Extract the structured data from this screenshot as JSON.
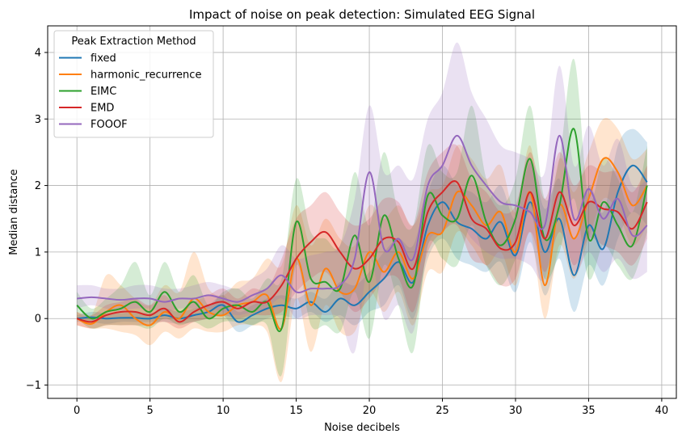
{
  "chart_data": {
    "type": "line",
    "title": "Impact of noise on peak detection: Simulated EEG Signal",
    "xlabel": "Noise decibels",
    "ylabel": "Median distance",
    "xlim": [
      -2,
      41
    ],
    "ylim": [
      -1.2,
      4.4
    ],
    "xticks": [
      0,
      5,
      10,
      15,
      20,
      25,
      30,
      35,
      40
    ],
    "yticks": [
      -1,
      0,
      1,
      2,
      3,
      4
    ],
    "grid": true,
    "legend": {
      "title": "Peak Extraction Method",
      "position": "upper-left"
    },
    "x": [
      0,
      1,
      2,
      3,
      4,
      5,
      6,
      7,
      8,
      9,
      10,
      11,
      12,
      13,
      14,
      15,
      16,
      17,
      18,
      19,
      20,
      21,
      22,
      23,
      24,
      25,
      26,
      27,
      28,
      29,
      30,
      31,
      32,
      33,
      34,
      35,
      36,
      37,
      38,
      39
    ],
    "series": [
      {
        "name": "fixed",
        "color": "#1f77b4",
        "values": [
          0,
          0.02,
          0.0,
          0.01,
          0.01,
          0.0,
          0.05,
          0.0,
          0.05,
          0.1,
          0.2,
          -0.05,
          0.05,
          0.15,
          0.2,
          0.15,
          0.25,
          0.1,
          0.3,
          0.2,
          0.4,
          0.6,
          0.85,
          0.55,
          1.4,
          1.75,
          1.45,
          1.35,
          1.2,
          1.45,
          0.95,
          1.75,
          1.0,
          1.5,
          0.65,
          1.4,
          1.05,
          1.9,
          2.3,
          2.05
        ],
        "lower": [
          -0.05,
          -0.05,
          -0.08,
          -0.05,
          -0.05,
          -0.05,
          -0.05,
          -0.08,
          -0.05,
          0.0,
          0.05,
          -0.2,
          -0.1,
          0.0,
          0.05,
          0.0,
          0.1,
          -0.05,
          0.05,
          -0.1,
          0.1,
          0.2,
          0.5,
          0.0,
          0.9,
          1.2,
          0.9,
          0.8,
          0.7,
          0.85,
          0.4,
          1.15,
          0.35,
          0.9,
          0.1,
          0.8,
          0.5,
          1.2,
          1.6,
          1.4
        ],
        "upper": [
          0.05,
          0.1,
          0.08,
          0.08,
          0.1,
          0.08,
          0.15,
          0.1,
          0.15,
          0.2,
          0.35,
          0.1,
          0.2,
          0.3,
          0.35,
          0.3,
          0.4,
          0.3,
          0.55,
          0.5,
          0.7,
          1.0,
          1.2,
          1.1,
          1.9,
          2.3,
          2.0,
          1.9,
          1.75,
          2.0,
          1.5,
          2.35,
          1.65,
          2.1,
          1.2,
          2.0,
          1.6,
          2.6,
          2.85,
          2.65
        ]
      },
      {
        "name": "harmonic_recurrence",
        "color": "#ff7f0e",
        "values": [
          0,
          -0.08,
          0.1,
          0.2,
          0.0,
          -0.1,
          0.1,
          0.0,
          0.3,
          0.1,
          0.05,
          0.2,
          0.25,
          0.35,
          -0.15,
          0.9,
          0.2,
          0.75,
          0.4,
          0.45,
          1.0,
          0.7,
          1.0,
          0.6,
          1.25,
          1.3,
          1.9,
          1.7,
          1.4,
          1.6,
          1.0,
          1.9,
          0.5,
          1.7,
          1.2,
          1.8,
          2.4,
          2.2,
          1.7,
          2.0
        ],
        "lower": [
          -0.1,
          -0.15,
          -0.15,
          -0.2,
          -0.25,
          -0.4,
          -0.2,
          -0.3,
          -0.15,
          -0.2,
          -0.2,
          -0.1,
          -0.1,
          -0.2,
          -0.95,
          0.3,
          -0.5,
          0.2,
          -0.2,
          -0.2,
          0.4,
          0.1,
          0.4,
          -0.1,
          0.7,
          0.7,
          1.3,
          1.1,
          0.8,
          1.0,
          0.5,
          1.3,
          0.0,
          1.1,
          0.6,
          1.2,
          1.8,
          1.6,
          1.1,
          1.4
        ],
        "upper": [
          0.1,
          0.05,
          0.65,
          0.5,
          0.3,
          0.2,
          0.5,
          0.4,
          1.0,
          0.45,
          0.35,
          0.55,
          0.6,
          0.9,
          0.8,
          1.7,
          1.1,
          1.5,
          1.2,
          1.1,
          1.7,
          1.5,
          1.7,
          1.4,
          1.9,
          2.0,
          2.6,
          2.4,
          2.1,
          2.3,
          1.6,
          2.6,
          1.2,
          2.4,
          1.9,
          2.5,
          3.0,
          2.85,
          2.4,
          2.55
        ]
      },
      {
        "name": "EIMC",
        "color": "#2ca02c",
        "values": [
          0.2,
          0.0,
          0.1,
          0.15,
          0.25,
          0.1,
          0.4,
          0.1,
          0.25,
          0.0,
          0.15,
          0.2,
          0.1,
          0.25,
          -0.15,
          1.45,
          0.6,
          0.55,
          0.45,
          1.25,
          0.55,
          1.55,
          0.9,
          0.5,
          1.85,
          1.55,
          1.5,
          2.15,
          1.45,
          1.1,
          1.5,
          2.4,
          1.2,
          1.7,
          2.85,
          1.2,
          1.75,
          1.4,
          1.1,
          2.0
        ],
        "lower": [
          0.0,
          -0.15,
          -0.1,
          -0.1,
          -0.1,
          -0.15,
          0.0,
          -0.1,
          -0.05,
          -0.15,
          -0.05,
          -0.05,
          -0.1,
          -0.1,
          -0.85,
          0.8,
          -0.1,
          -0.1,
          -0.2,
          0.4,
          -0.3,
          0.8,
          0.2,
          -0.5,
          1.1,
          0.9,
          0.8,
          1.4,
          0.8,
          0.5,
          0.9,
          1.6,
          0.6,
          1.0,
          1.8,
          0.6,
          1.1,
          0.8,
          0.6,
          1.3
        ],
        "upper": [
          0.4,
          0.15,
          0.3,
          0.5,
          0.85,
          0.35,
          0.85,
          0.4,
          0.65,
          0.2,
          0.4,
          0.45,
          0.3,
          0.6,
          0.6,
          2.1,
          1.3,
          1.2,
          1.1,
          2.2,
          1.4,
          2.5,
          1.6,
          1.4,
          2.6,
          2.2,
          2.2,
          3.2,
          2.1,
          1.7,
          2.1,
          3.2,
          1.8,
          2.4,
          3.9,
          1.8,
          2.4,
          2.1,
          1.6,
          2.6
        ]
      },
      {
        "name": "EMD",
        "color": "#d62728",
        "values": [
          0,
          -0.05,
          0.05,
          0.1,
          0.1,
          0.05,
          0.15,
          -0.05,
          0.1,
          0.2,
          0.25,
          0.15,
          0.25,
          0.25,
          0.5,
          0.9,
          1.15,
          1.3,
          1.0,
          0.75,
          0.9,
          1.2,
          1.15,
          0.75,
          1.6,
          1.9,
          2.05,
          1.5,
          1.35,
          1.05,
          1.15,
          1.9,
          1.2,
          1.9,
          1.4,
          1.75,
          1.65,
          1.6,
          1.35,
          1.75
        ],
        "lower": [
          -0.1,
          -0.15,
          -0.1,
          -0.1,
          -0.1,
          -0.1,
          -0.05,
          -0.15,
          -0.05,
          0.0,
          0.05,
          0.0,
          0.05,
          0.05,
          0.1,
          0.4,
          0.6,
          0.7,
          0.4,
          0.1,
          0.3,
          0.6,
          0.6,
          0.1,
          1.0,
          1.3,
          1.4,
          0.9,
          0.8,
          0.5,
          0.6,
          1.3,
          0.7,
          1.3,
          0.8,
          1.2,
          1.1,
          1.0,
          0.8,
          1.2
        ],
        "upper": [
          0.1,
          0.05,
          0.2,
          0.25,
          0.3,
          0.2,
          0.35,
          0.1,
          0.25,
          0.35,
          0.45,
          0.3,
          0.45,
          0.45,
          0.9,
          1.5,
          1.7,
          1.9,
          1.6,
          1.4,
          1.5,
          1.8,
          1.75,
          1.4,
          2.2,
          2.5,
          2.6,
          2.1,
          1.9,
          1.6,
          1.7,
          2.5,
          1.8,
          2.5,
          2.0,
          2.3,
          2.2,
          2.2,
          1.9,
          2.3
        ]
      },
      {
        "name": "FOOOF",
        "color": "#9467bd",
        "values": [
          0.3,
          0.32,
          0.3,
          0.28,
          0.3,
          0.3,
          0.25,
          0.3,
          0.3,
          0.35,
          0.3,
          0.25,
          0.35,
          0.45,
          0.65,
          0.4,
          0.45,
          0.45,
          0.5,
          0.9,
          2.2,
          1.05,
          1.2,
          0.9,
          2.0,
          2.3,
          2.75,
          2.3,
          2.0,
          1.75,
          1.7,
          1.6,
          1.4,
          2.75,
          1.5,
          1.95,
          1.5,
          1.8,
          1.25,
          1.4
        ],
        "lower": [
          0.15,
          0.2,
          0.15,
          0.12,
          0.15,
          0.15,
          0.1,
          0.15,
          0.15,
          0.15,
          0.1,
          0.05,
          0.1,
          0.15,
          0.3,
          0.0,
          0.05,
          0.05,
          0.0,
          -0.5,
          0.9,
          0.0,
          0.2,
          -0.2,
          1.1,
          1.3,
          1.5,
          1.2,
          1.0,
          0.9,
          0.9,
          0.8,
          0.6,
          1.6,
          0.7,
          1.0,
          0.7,
          0.9,
          0.6,
          0.7
        ],
        "upper": [
          0.5,
          0.5,
          0.45,
          0.45,
          0.5,
          0.5,
          0.45,
          0.45,
          0.5,
          0.55,
          0.5,
          0.45,
          0.6,
          0.75,
          1.1,
          0.9,
          0.95,
          1.0,
          1.1,
          1.8,
          3.2,
          2.2,
          2.3,
          2.1,
          3.0,
          3.4,
          4.15,
          3.4,
          3.0,
          2.6,
          2.5,
          2.4,
          2.2,
          3.8,
          2.3,
          2.9,
          2.3,
          2.7,
          2.0,
          2.1
        ]
      }
    ]
  }
}
